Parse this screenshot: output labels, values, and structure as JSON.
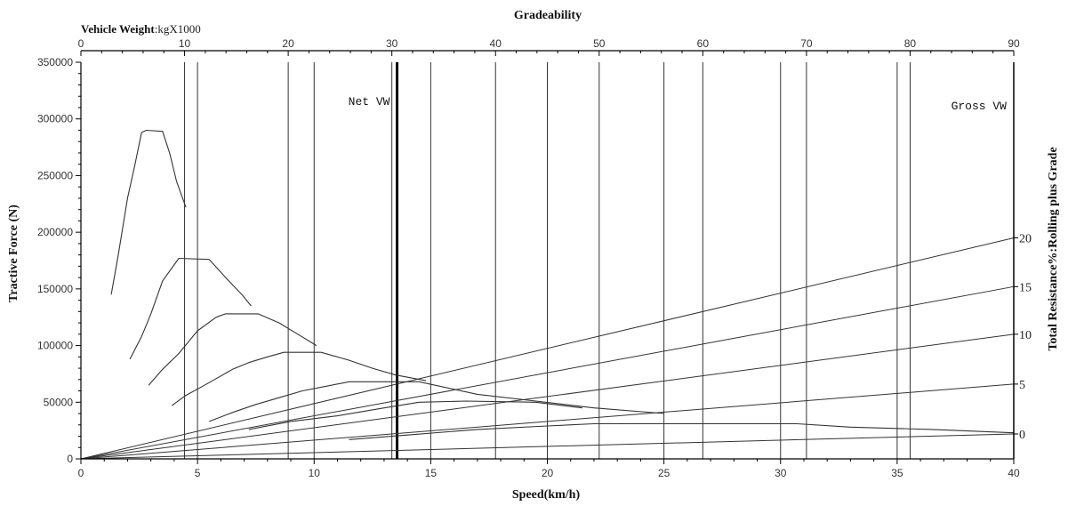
{
  "chart_data": {
    "type": "line",
    "title": "Gradeability",
    "xlabel": "Speed(km/h)",
    "ylabel": "Tractive Force (N)",
    "y2label": "Total Resistance%:Rolling plus Grade",
    "topAxisLabel": {
      "bold": "Vehicle Weight",
      "rest": ":kgX1000"
    },
    "xlim": [
      0,
      40
    ],
    "ylim": [
      0,
      350000
    ],
    "topAxis": {
      "lim": [
        0,
        90
      ],
      "ticks": [
        0,
        10,
        20,
        30,
        40,
        50,
        60,
        70,
        80,
        90
      ]
    },
    "xticks": [
      0,
      5,
      10,
      15,
      20,
      25,
      30,
      35,
      40
    ],
    "yticks": [
      0,
      50000,
      100000,
      150000,
      200000,
      250000,
      300000,
      350000
    ],
    "gradeTicks": [
      0,
      5,
      10,
      15,
      20
    ],
    "verticalRefs": [
      {
        "label": "Net VW",
        "weight": 30.5,
        "bold": true
      },
      {
        "label": "Gross VW",
        "weight": 90,
        "bold": true
      }
    ],
    "gearCurves": [
      {
        "points": [
          [
            1.3,
            145000
          ],
          [
            1.6,
            180000
          ],
          [
            2.0,
            230000
          ],
          [
            2.3,
            258000
          ],
          [
            2.6,
            288000
          ],
          [
            2.8,
            290000
          ],
          [
            3.5,
            289000
          ],
          [
            3.8,
            270000
          ],
          [
            4.1,
            245000
          ],
          [
            4.5,
            222000
          ]
        ]
      },
      {
        "points": [
          [
            2.1,
            88000
          ],
          [
            2.6,
            108000
          ],
          [
            3.0,
            128000
          ],
          [
            3.5,
            157000
          ],
          [
            4.2,
            177000
          ],
          [
            5.5,
            176000
          ],
          [
            6.3,
            158000
          ],
          [
            6.9,
            145000
          ],
          [
            7.3,
            135000
          ]
        ]
      },
      {
        "points": [
          [
            2.9,
            65000
          ],
          [
            3.5,
            79000
          ],
          [
            4.2,
            93000
          ],
          [
            5.0,
            113000
          ],
          [
            5.8,
            125000
          ],
          [
            6.2,
            128000
          ],
          [
            7.6,
            128000
          ],
          [
            8.5,
            120000
          ],
          [
            9.3,
            110000
          ],
          [
            10.1,
            100000
          ]
        ]
      },
      {
        "points": [
          [
            3.9,
            47000
          ],
          [
            4.5,
            56000
          ],
          [
            5.3,
            65000
          ],
          [
            6.5,
            79000
          ],
          [
            7.2,
            85000
          ],
          [
            8.0,
            90000
          ],
          [
            8.7,
            94000
          ],
          [
            10.3,
            94000
          ],
          [
            11.5,
            87000
          ],
          [
            12.5,
            80000
          ],
          [
            13.5,
            74000
          ],
          [
            14.8,
            69000
          ]
        ]
      },
      {
        "points": [
          [
            5.5,
            33000
          ],
          [
            6.5,
            41000
          ],
          [
            7.5,
            48000
          ],
          [
            8.5,
            54000
          ],
          [
            9.5,
            60000
          ],
          [
            10.5,
            64000
          ],
          [
            11.5,
            68000
          ],
          [
            14.5,
            68000
          ],
          [
            17.0,
            57000
          ],
          [
            19.5,
            51000
          ],
          [
            22.0,
            45000
          ],
          [
            25.0,
            40000
          ]
        ]
      },
      {
        "points": [
          [
            7.2,
            26000
          ],
          [
            9.0,
            33000
          ],
          [
            11.0,
            38000
          ],
          [
            13.0,
            45000
          ],
          [
            14.5,
            50000
          ],
          [
            16.5,
            51000
          ],
          [
            19.5,
            50000
          ],
          [
            21.5,
            45000
          ]
        ]
      },
      {
        "points": [
          [
            11.5,
            17000
          ],
          [
            14.0,
            21000
          ],
          [
            17.0,
            26000
          ],
          [
            20.0,
            29000
          ],
          [
            22.0,
            31000
          ],
          [
            25.0,
            31000
          ],
          [
            30.7,
            31000
          ],
          [
            33.0,
            28000
          ],
          [
            36.5,
            26000
          ],
          [
            40.0,
            23000
          ]
        ]
      }
    ],
    "resistanceLines": [
      {
        "grade": 20,
        "endForce": 195000
      },
      {
        "grade": 15,
        "endForce": 152000
      },
      {
        "grade": 10,
        "endForce": 110000
      },
      {
        "grade": 5,
        "endForce": 66000
      },
      {
        "grade": 0,
        "endForce": 22000
      }
    ]
  }
}
